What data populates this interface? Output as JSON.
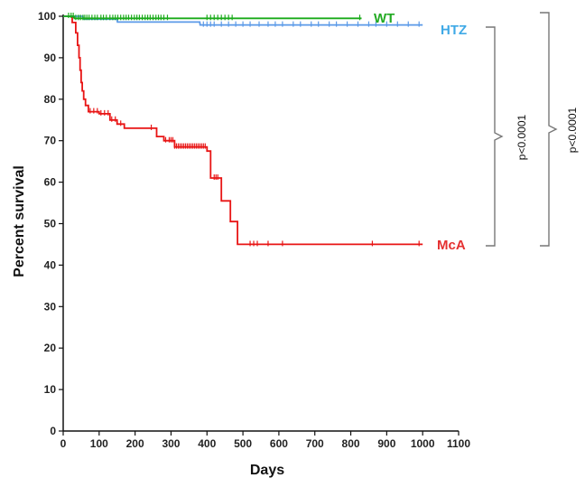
{
  "chart_data": {
    "type": "line",
    "subtype": "kaplan-meier survival curve",
    "xlabel": "Days",
    "ylabel": "Percent survival",
    "xlim": [
      0,
      1100
    ],
    "ylim": [
      0,
      100
    ],
    "xticks": [
      0,
      100,
      200,
      300,
      400,
      500,
      600,
      700,
      800,
      900,
      1000,
      1100
    ],
    "yticks": [
      0,
      10,
      20,
      30,
      40,
      50,
      60,
      70,
      80,
      90,
      100
    ],
    "grid": false,
    "series": [
      {
        "name": "WT",
        "color": "#1aaa1a",
        "label_color": "#22aa22",
        "steps": [
          [
            0,
            100
          ],
          [
            30,
            100
          ],
          [
            31,
            99.5
          ],
          [
            830,
            99.5
          ]
        ],
        "censor_x": [
          15,
          22,
          28,
          35,
          42,
          48,
          55,
          60,
          66,
          72,
          80,
          88,
          95,
          105,
          112,
          120,
          130,
          138,
          145,
          152,
          160,
          168,
          175,
          182,
          190,
          198,
          205,
          212,
          220,
          228,
          235,
          242,
          250,
          258,
          265,
          272,
          280,
          290,
          400,
          410,
          420,
          430,
          440,
          450,
          460,
          470,
          825
        ]
      },
      {
        "name": "HTZ",
        "color": "#5b9ae8",
        "label_color": "#3fa9e6",
        "steps": [
          [
            0,
            100
          ],
          [
            55,
            100
          ],
          [
            56,
            99.3
          ],
          [
            150,
            99.3
          ],
          [
            151,
            98.6
          ],
          [
            380,
            98.6
          ],
          [
            381,
            97.9
          ],
          [
            1000,
            97.9
          ]
        ],
        "censor_x": [
          390,
          400,
          410,
          420,
          440,
          460,
          480,
          500,
          520,
          545,
          570,
          590,
          610,
          640,
          660,
          690,
          710,
          740,
          760,
          790,
          820,
          850,
          870,
          900,
          930,
          960,
          990
        ]
      },
      {
        "name": "McA",
        "color": "#e81515",
        "label_color": "#e53030",
        "steps": [
          [
            0,
            100
          ],
          [
            25,
            100
          ],
          [
            25,
            98.5
          ],
          [
            35,
            98.5
          ],
          [
            35,
            96
          ],
          [
            40,
            96
          ],
          [
            40,
            93
          ],
          [
            44,
            93
          ],
          [
            44,
            90
          ],
          [
            47,
            90
          ],
          [
            47,
            87
          ],
          [
            50,
            87
          ],
          [
            50,
            84
          ],
          [
            53,
            84
          ],
          [
            53,
            82
          ],
          [
            57,
            82
          ],
          [
            57,
            80
          ],
          [
            62,
            80
          ],
          [
            62,
            78.5
          ],
          [
            70,
            78.5
          ],
          [
            70,
            77
          ],
          [
            100,
            77
          ],
          [
            100,
            76.5
          ],
          [
            130,
            76.5
          ],
          [
            130,
            75
          ],
          [
            150,
            75
          ],
          [
            150,
            74
          ],
          [
            170,
            74
          ],
          [
            170,
            73
          ],
          [
            260,
            73
          ],
          [
            260,
            71
          ],
          [
            280,
            71
          ],
          [
            280,
            70
          ],
          [
            310,
            70
          ],
          [
            310,
            68.5
          ],
          [
            400,
            68.5
          ],
          [
            400,
            67.5
          ],
          [
            410,
            67.5
          ],
          [
            410,
            61
          ],
          [
            440,
            61
          ],
          [
            440,
            55.5
          ],
          [
            465,
            55.5
          ],
          [
            465,
            50.5
          ],
          [
            485,
            50.5
          ],
          [
            485,
            45
          ],
          [
            1000,
            45
          ]
        ],
        "censor_x": [
          75,
          85,
          95,
          105,
          115,
          125,
          135,
          145,
          160,
          245,
          285,
          295,
          300,
          305,
          310,
          315,
          320,
          325,
          330,
          335,
          340,
          345,
          350,
          355,
          360,
          365,
          370,
          375,
          380,
          385,
          390,
          395,
          420,
          425,
          430,
          520,
          530,
          540,
          570,
          610,
          860,
          990
        ]
      }
    ],
    "annotations": [
      {
        "text": "p<0.0001",
        "between": [
          "HTZ",
          "McA"
        ]
      },
      {
        "text": "p<0.0001",
        "between": [
          "WT",
          "McA"
        ]
      }
    ]
  }
}
